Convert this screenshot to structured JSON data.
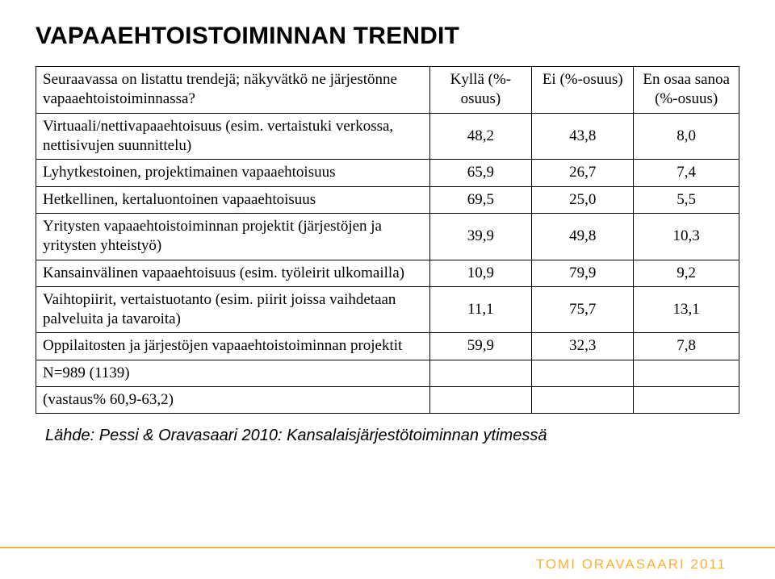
{
  "title": "VAPAAEHTOISTOIMINNAN TRENDIT",
  "table": {
    "header_row_label": "Seuraavassa on listattu trendejä; näkyvätkö ne järjestönne vapaaehtoistoiminnassa?",
    "columns": [
      "Kyllä (%-osuus)",
      "Ei (%-osuus)",
      "En osaa sanoa (%-osuus)"
    ],
    "rows": [
      {
        "label": "Virtuaali/nettivapaaehtoisuus (esim. vertaistuki verkossa, nettisivujen suunnittelu)",
        "c1": "48,2",
        "c2": "43,8",
        "c3": "8,0"
      },
      {
        "label": "Lyhytkestoinen, projektimainen vapaaehtoisuus",
        "c1": "65,9",
        "c2": "26,7",
        "c3": "7,4"
      },
      {
        "label": "Hetkellinen, kertaluontoinen vapaaehtoisuus",
        "c1": "69,5",
        "c2": "25,0",
        "c3": "5,5"
      },
      {
        "label": "Yritysten vapaaehtoistoiminnan projektit (järjestöjen ja yritysten yhteistyö)",
        "c1": "39,9",
        "c2": "49,8",
        "c3": "10,3"
      },
      {
        "label": "Kansainvälinen vapaaehtoisuus (esim. työleirit ulkomailla)",
        "c1": "10,9",
        "c2": "79,9",
        "c3": "9,2"
      },
      {
        "label": "Vaihtopiirit, vertaistuotanto (esim. piirit joissa vaihdetaan palveluita ja tavaroita)",
        "c1": "11,1",
        "c2": "75,7",
        "c3": "13,1"
      },
      {
        "label": "Oppilaitosten ja järjestöjen vapaaehtoistoiminnan projektit",
        "c1": "59,9",
        "c2": "32,3",
        "c3": "7,8"
      }
    ],
    "footer_rows": [
      "N=989 (1139)",
      "(vastaus% 60,9-63,2)"
    ]
  },
  "source_text": "Lähde: Pessi & Oravasaari 2010: Kansalaisjärjestötoiminnan ytimessä",
  "footer": {
    "text": "TOMI ORAVASAARI 2011",
    "text_color": "#fbb034",
    "line_color": "#fbb034"
  },
  "style": {
    "title_fontsize": 30,
    "cell_fontsize": 19,
    "source_fontsize": 20,
    "footer_fontsize": 17,
    "background": "#ffffff",
    "border_color": "#000000"
  }
}
